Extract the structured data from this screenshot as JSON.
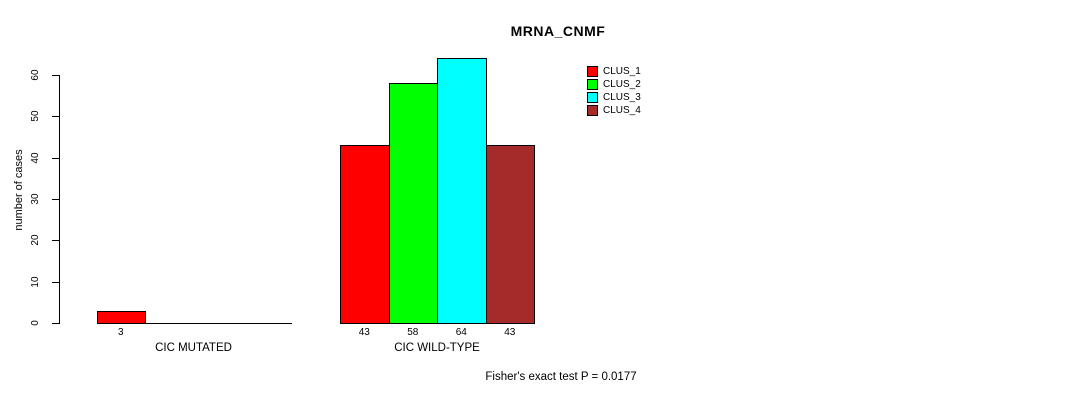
{
  "chart_data": {
    "type": "bar",
    "title": "MRNA_CNMF",
    "ylabel": "number of cases",
    "xlabel": "",
    "ylim": [
      0,
      64
    ],
    "yticks": [
      0,
      10,
      20,
      30,
      40,
      50,
      60
    ],
    "grid": false,
    "legend_position": "top-right",
    "categories": [
      "CIC MUTATED",
      "CIC WILD-TYPE"
    ],
    "series": [
      {
        "name": "CLUS_1",
        "color": "#ff0000",
        "values": [
          3,
          43
        ]
      },
      {
        "name": "CLUS_2",
        "color": "#00ff00",
        "values": [
          0,
          58
        ]
      },
      {
        "name": "CLUS_3",
        "color": "#00ffff",
        "values": [
          0,
          64
        ]
      },
      {
        "name": "CLUS_4",
        "color": "#a52a2a",
        "values": [
          0,
          43
        ]
      }
    ],
    "bar_value_labels": [
      "3",
      "43",
      "58",
      "64",
      "43"
    ],
    "show_zero_labels": false,
    "footnote": "Fisher's exact test P = 0.0177"
  }
}
